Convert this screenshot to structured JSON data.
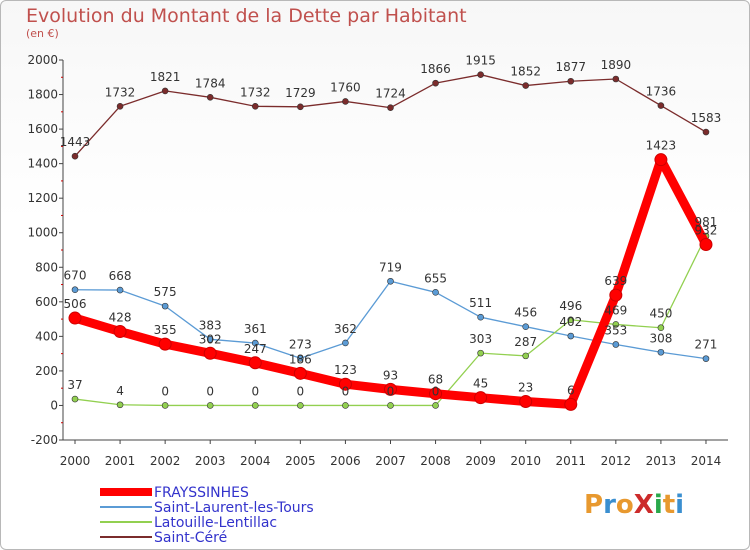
{
  "header": {
    "title": "Evolution du Montant de la Dette par Habitant",
    "subtitle": "(en €)"
  },
  "logo": {
    "text": "ProXiti",
    "colors": [
      "#e8992f",
      "#3a8fd0",
      "#e8992f",
      "#cc2b2b",
      "#2aa84a",
      "#e8992f",
      "#3a8fd0"
    ]
  },
  "chart_data": {
    "type": "line",
    "title": "Evolution du Montant de la Dette par Habitant",
    "ylabel": "(en €)",
    "x": [
      "2000",
      "2001",
      "2002",
      "2003",
      "2004",
      "2005",
      "2006",
      "2007",
      "2008",
      "2009",
      "2010",
      "2011",
      "2012",
      "2013",
      "2014"
    ],
    "ylim": [
      -200,
      2000
    ],
    "yticks": [
      -200,
      0,
      200,
      400,
      600,
      800,
      1000,
      1200,
      1400,
      1600,
      1800,
      2000
    ],
    "grid": false,
    "legend_position": "bottom-left",
    "series": [
      {
        "name": "FRAYSSINHES",
        "color": "#ff0000",
        "values": [
          506,
          428,
          355,
          302,
          247,
          186,
          123,
          93,
          68,
          45,
          23,
          6,
          639,
          1423,
          932
        ]
      },
      {
        "name": "Saint-Laurent-les-Tours",
        "color": "#5b9bd5",
        "values": [
          670,
          668,
          575,
          383,
          361,
          273,
          362,
          719,
          655,
          511,
          456,
          402,
          353,
          308,
          271
        ]
      },
      {
        "name": "Latouille-Lentillac",
        "color": "#92d050",
        "values": [
          37,
          4,
          0,
          0,
          0,
          0,
          0,
          0,
          0,
          303,
          287,
          496,
          469,
          450,
          981
        ]
      },
      {
        "name": "Saint-Céré",
        "color": "#7b2c2c",
        "values": [
          1443,
          1732,
          1821,
          1784,
          1732,
          1729,
          1760,
          1724,
          1866,
          1915,
          1852,
          1877,
          1890,
          1736,
          1583
        ]
      }
    ]
  }
}
